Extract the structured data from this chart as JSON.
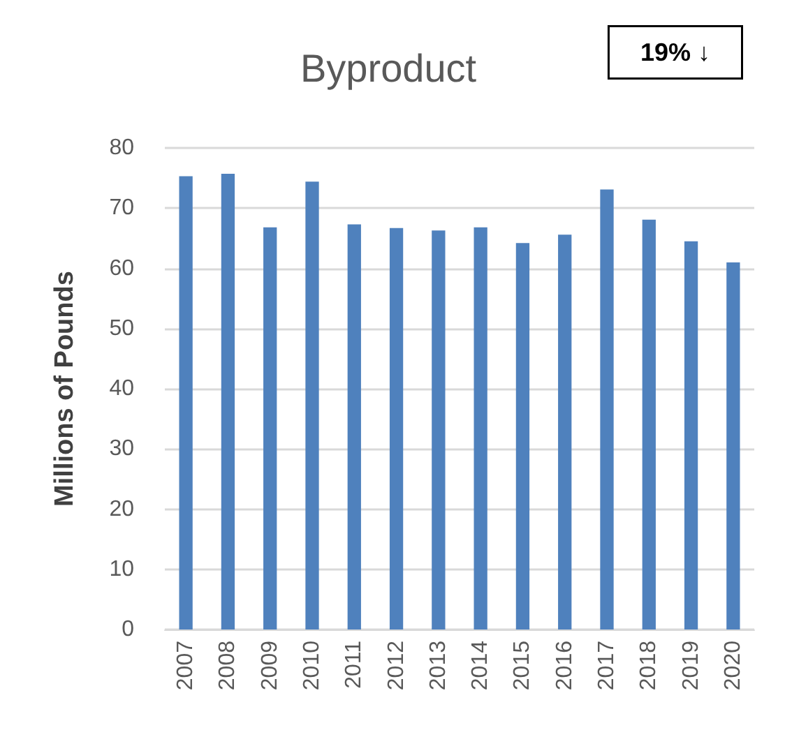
{
  "chart_data": {
    "type": "bar",
    "title": "Byproduct",
    "ylabel": "Millions of Pounds",
    "categories": [
      "2007",
      "2008",
      "2009",
      "2010",
      "2011",
      "2012",
      "2013",
      "2014",
      "2015",
      "2016",
      "2017",
      "2018",
      "2019",
      "2020"
    ],
    "values": [
      75.3,
      75.7,
      66.8,
      74.4,
      67.3,
      66.7,
      66.3,
      66.8,
      64.2,
      65.6,
      73.1,
      68.1,
      64.5,
      61.0
    ],
    "color": "#4f81bd",
    "ylim": [
      0,
      80
    ],
    "yticks": [
      0,
      10,
      20,
      30,
      40,
      50,
      60,
      70,
      80
    ],
    "grid": "y",
    "annotations": [
      "19% ↓"
    ]
  }
}
